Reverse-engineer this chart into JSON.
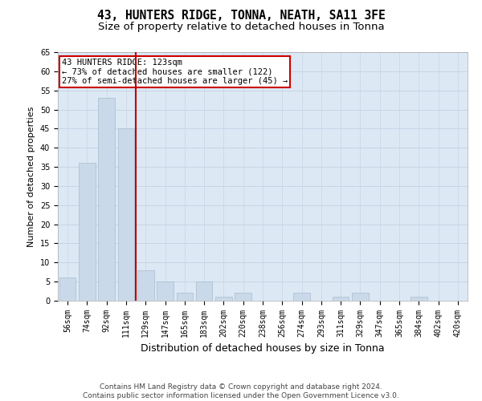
{
  "title": "43, HUNTERS RIDGE, TONNA, NEATH, SA11 3FE",
  "subtitle": "Size of property relative to detached houses in Tonna",
  "xlabel": "Distribution of detached houses by size in Tonna",
  "ylabel": "Number of detached properties",
  "categories": [
    "56sqm",
    "74sqm",
    "92sqm",
    "111sqm",
    "129sqm",
    "147sqm",
    "165sqm",
    "183sqm",
    "202sqm",
    "220sqm",
    "238sqm",
    "256sqm",
    "274sqm",
    "293sqm",
    "311sqm",
    "329sqm",
    "347sqm",
    "365sqm",
    "384sqm",
    "402sqm",
    "420sqm"
  ],
  "values": [
    6,
    36,
    53,
    45,
    8,
    5,
    2,
    5,
    1,
    2,
    0,
    0,
    2,
    0,
    1,
    2,
    0,
    0,
    1,
    0,
    0
  ],
  "bar_color": "#c9d9e9",
  "bar_edge_color": "#aabccc",
  "vline_color": "#bb0000",
  "vline_x_pos": 3.5,
  "annotation_text_line1": "43 HUNTERS RIDGE: 123sqm",
  "annotation_text_line2": "← 73% of detached houses are smaller (122)",
  "annotation_text_line3": "27% of semi-detached houses are larger (45) →",
  "annotation_box_facecolor": "#ffffff",
  "annotation_box_edgecolor": "#cc0000",
  "ylim_max": 65,
  "yticks": [
    0,
    5,
    10,
    15,
    20,
    25,
    30,
    35,
    40,
    45,
    50,
    55,
    60,
    65
  ],
  "grid_color": "#c8d4e4",
  "background_color": "#dce8f4",
  "footer_line1": "Contains HM Land Registry data © Crown copyright and database right 2024.",
  "footer_line2": "Contains public sector information licensed under the Open Government Licence v3.0.",
  "title_fontsize": 10.5,
  "subtitle_fontsize": 9.5,
  "xlabel_fontsize": 9,
  "ylabel_fontsize": 8,
  "tick_fontsize": 7,
  "annotation_fontsize": 7.5,
  "footer_fontsize": 6.5
}
